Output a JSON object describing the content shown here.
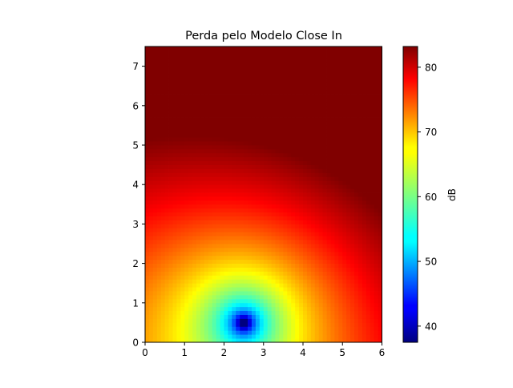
{
  "chart_data": {
    "type": "heatmap",
    "title": "Perda pelo Modelo Close In",
    "xlabel": "",
    "ylabel": "",
    "xlim": [
      0,
      6
    ],
    "ylim": [
      0,
      7.5
    ],
    "x_ticks": [
      0,
      1,
      2,
      3,
      4,
      5,
      6
    ],
    "y_ticks": [
      0,
      1,
      2,
      3,
      4,
      5,
      6,
      7
    ],
    "grid": "off",
    "colormap": "jet",
    "transmitter": {
      "x": 2.5,
      "y": 0.5
    },
    "cell_size": 0.1,
    "colorbar": {
      "label": "dB",
      "range": [
        37.5,
        83.2
      ],
      "ticks": [
        40,
        50,
        60,
        70,
        80
      ]
    },
    "sample_values": [
      {
        "x": 2.5,
        "y": 0.6,
        "value": 38
      },
      {
        "x": 2.5,
        "y": 1.0,
        "value": 56
      },
      {
        "x": 2.5,
        "y": 1.5,
        "value": 63
      },
      {
        "x": 2.5,
        "y": 2.0,
        "value": 68
      },
      {
        "x": 2.5,
        "y": 3.0,
        "value": 74
      },
      {
        "x": 2.5,
        "y": 5.0,
        "value": 78
      },
      {
        "x": 2.5,
        "y": 7.0,
        "value": 82
      },
      {
        "x": 0.5,
        "y": 1.0,
        "value": 72
      },
      {
        "x": 5.5,
        "y": 1.0,
        "value": 75
      },
      {
        "x": 0.5,
        "y": 7.0,
        "value": 82
      },
      {
        "x": 5.9,
        "y": 7.4,
        "value": 83
      }
    ]
  }
}
